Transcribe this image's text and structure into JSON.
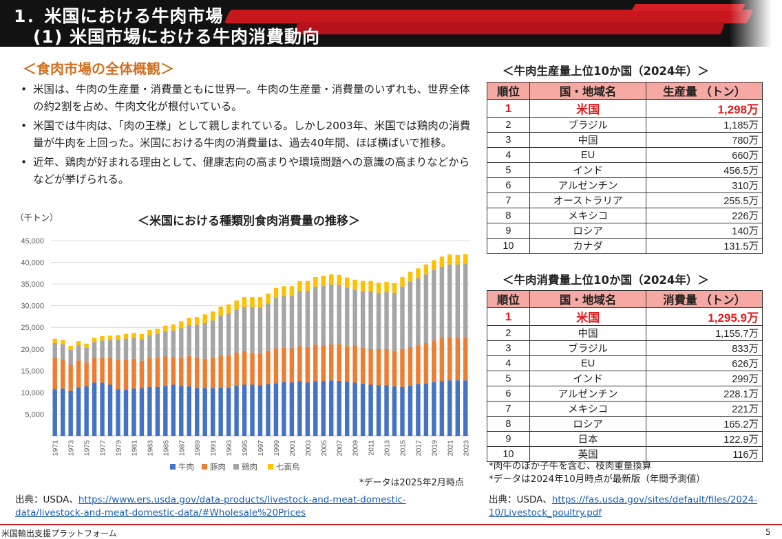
{
  "header": {
    "title1": "1．米国における牛肉市場",
    "title2": "(1) 米国市場における牛肉消費動向"
  },
  "overview": {
    "title": "＜食肉市場の全体概観＞",
    "bullets": [
      "米国は、牛肉の生産量・消費量ともに世界一。牛肉の生産量・消費量のいずれも、世界全体の約2割を占め、牛肉文化が根付いている。",
      "米国では牛肉は、「肉の王様」として親しまれている。しかし2003年、米国では鶏肉の消費量が牛肉を上回った。米国における牛肉の消費量は、過去40年間、ほぼ横ばいで推移。",
      "近年、鶏肉が好まれる理由として、健康志向の高まりや環境問題への意識の高まりなどからなどが挙げられる。"
    ]
  },
  "chart_data": {
    "type": "bar",
    "stacked": true,
    "title": "＜米国における種類別食肉消費量の推移＞",
    "unit": "（千トン）",
    "ylim": [
      0,
      45000
    ],
    "yticks": [
      5000,
      10000,
      15000,
      20000,
      25000,
      30000,
      35000,
      40000,
      45000
    ],
    "ytick_labels": [
      "5,000",
      "10,000",
      "15,000",
      "20,000",
      "25,000",
      "30,000",
      "35,000",
      "40,000",
      "45,000"
    ],
    "categories": [
      "1971",
      "1972",
      "1973",
      "1974",
      "1975",
      "1976",
      "1977",
      "1978",
      "1979",
      "1980",
      "1981",
      "1982",
      "1983",
      "1984",
      "1985",
      "1986",
      "1987",
      "1988",
      "1989",
      "1990",
      "1991",
      "1992",
      "1993",
      "1994",
      "1995",
      "1996",
      "1997",
      "1998",
      "1999",
      "2000",
      "2001",
      "2002",
      "2003",
      "2004",
      "2005",
      "2006",
      "2007",
      "2008",
      "2009",
      "2010",
      "2011",
      "2012",
      "2013",
      "2014",
      "2015",
      "2016",
      "2017",
      "2018",
      "2019",
      "2020",
      "2021",
      "2022",
      "2023"
    ],
    "xtick_labels": [
      "1971",
      "1973",
      "1975",
      "1977",
      "1979",
      "1981",
      "1983",
      "1985",
      "1987",
      "1989",
      "1991",
      "1993",
      "1995",
      "1997",
      "1999",
      "2001",
      "2003",
      "2005",
      "2007",
      "2009",
      "2011",
      "2013",
      "2015",
      "2017",
      "2019",
      "2021",
      "2023"
    ],
    "series": [
      {
        "name": "牛肉",
        "color": "#4472c4",
        "values": [
          10700,
          10900,
          10400,
          11200,
          11400,
          12300,
          12300,
          11800,
          10700,
          10600,
          10900,
          11000,
          11300,
          11300,
          11500,
          11800,
          11500,
          11400,
          11000,
          11000,
          11000,
          11100,
          11100,
          11500,
          11800,
          11800,
          11700,
          11900,
          12100,
          12400,
          12300,
          12600,
          12300,
          12600,
          12600,
          12800,
          12700,
          12500,
          12300,
          12000,
          11800,
          11700,
          11700,
          11400,
          11300,
          11600,
          11900,
          12100,
          12400,
          12600,
          12800,
          12800,
          12800
        ]
      },
      {
        "name": "豚肉",
        "color": "#ed7d31",
        "values": [
          7200,
          6700,
          6000,
          6200,
          5500,
          5700,
          5800,
          6100,
          6800,
          7100,
          6900,
          6300,
          6700,
          6700,
          6800,
          6400,
          6500,
          7000,
          7000,
          6800,
          6900,
          7400,
          7500,
          7700,
          7700,
          7400,
          7300,
          7700,
          8000,
          7900,
          7900,
          8100,
          8200,
          8400,
          8300,
          8300,
          8500,
          8200,
          8600,
          8400,
          8200,
          8300,
          8300,
          8100,
          8700,
          8900,
          9000,
          9300,
          9600,
          9900,
          10000,
          9800,
          9700
        ]
      },
      {
        "name": "鶏肉",
        "color": "#a5a5a5",
        "values": [
          3500,
          3500,
          3400,
          3500,
          3400,
          3600,
          3900,
          4200,
          4600,
          4700,
          4800,
          5000,
          5200,
          5500,
          5800,
          6100,
          6800,
          7100,
          7600,
          8200,
          8700,
          9200,
          9600,
          9800,
          10200,
          10500,
          10600,
          10900,
          11700,
          11900,
          12000,
          12700,
          12900,
          13300,
          13700,
          13800,
          13600,
          13500,
          12800,
          13000,
          13400,
          13000,
          13200,
          13500,
          14400,
          15000,
          15400,
          15800,
          16200,
          16500,
          16700,
          16900,
          17100
        ]
      },
      {
        "name": "七面鳥",
        "color": "#ffc000",
        "values": [
          1000,
          1000,
          950,
          950,
          950,
          1000,
          1000,
          1000,
          1100,
          1100,
          1150,
          1150,
          1200,
          1200,
          1300,
          1400,
          1600,
          1700,
          1800,
          2000,
          2100,
          2100,
          2100,
          2200,
          2300,
          2300,
          2400,
          2300,
          2300,
          2300,
          2300,
          2300,
          2300,
          2300,
          2300,
          2300,
          2300,
          2300,
          2300,
          2300,
          2300,
          2300,
          2300,
          2200,
          2200,
          2300,
          2300,
          2300,
          2300,
          2300,
          2300,
          2200,
          2300
        ]
      }
    ],
    "legend": [
      "牛肉",
      "豚肉",
      "鶏肉",
      "七面鳥"
    ],
    "note": "*データは2025年2月時点"
  },
  "source1": {
    "prefix": "出典：USDA、",
    "link_line1": "https://www.ers.usda.gov/data-products/livestock-and-meat-domestic-",
    "link_line2": "data/livestock-and-meat-domestic-data/#Wholesale%20Prices"
  },
  "production_table": {
    "title": "＜牛肉生産量上位10か国（2024年）＞",
    "headers": [
      "順位",
      "国・地域名",
      "生産量 （トン）"
    ],
    "rows": [
      [
        "1",
        "米国",
        "1,298万"
      ],
      [
        "2",
        "ブラジル",
        "1,185万"
      ],
      [
        "3",
        "中国",
        "780万"
      ],
      [
        "4",
        "EU",
        "660万"
      ],
      [
        "5",
        "インド",
        "456.5万"
      ],
      [
        "6",
        "アルゼンチン",
        "310万"
      ],
      [
        "7",
        "オーストラリア",
        "255.5万"
      ],
      [
        "8",
        "メキシコ",
        "226万"
      ],
      [
        "9",
        "ロシア",
        "140万"
      ],
      [
        "10",
        "カナダ",
        "131.5万"
      ]
    ]
  },
  "consumption_table": {
    "title": "＜牛肉消費量上位10か国（2024年）＞",
    "headers": [
      "順位",
      "国・地域名",
      "消費量 （トン）"
    ],
    "rows": [
      [
        "1",
        "米国",
        "1,295.9万"
      ],
      [
        "2",
        "中国",
        "1,155.7万"
      ],
      [
        "3",
        "ブラジル",
        "833万"
      ],
      [
        "4",
        "EU",
        "626万"
      ],
      [
        "5",
        "インド",
        "299万"
      ],
      [
        "6",
        "アルゼンチン",
        "228.1万"
      ],
      [
        "7",
        "メキシコ",
        "221万"
      ],
      [
        "8",
        "ロシア",
        "165.2万"
      ],
      [
        "9",
        "日本",
        "122.9万"
      ],
      [
        "10",
        "英国",
        "116万"
      ]
    ]
  },
  "notes": {
    "line1": "*肉牛のほか子牛を含む、枝肉重量換算",
    "line2": "*データは2024年10月時点が最新版（年間予測値）"
  },
  "source2": {
    "prefix": "出典：USDA、",
    "link_line1": "https://fas.usda.gov/sites/default/files/2024-",
    "link_line2": "10/Livestock_poultry.pdf"
  },
  "footer": {
    "org": "米国輸出支援プラットフォーム",
    "page": "5"
  }
}
